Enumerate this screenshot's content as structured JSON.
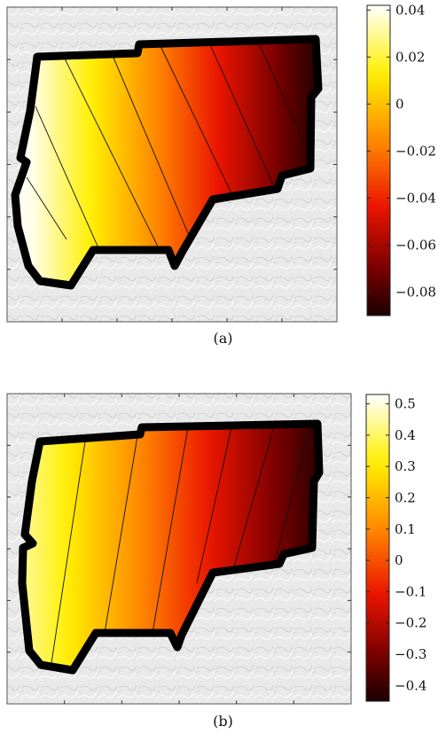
{
  "chart_data": [
    {
      "type": "heatmap",
      "caption": "(a)",
      "colorbar": {
        "min": -0.09,
        "max": 0.042,
        "ticks": [
          0.04,
          0.02,
          0,
          -0.02,
          -0.04,
          -0.06,
          -0.08
        ],
        "tick_labels": [
          "0.04",
          "0.02",
          "0",
          "−0.02",
          "−0.04",
          "−0.06",
          "−0.08"
        ]
      },
      "field": {
        "value_left": 0.04,
        "value_right": -0.088,
        "direction": "decreasing left to right"
      },
      "contour_count": 6,
      "colormap": [
        "#1a0000",
        "#8b0000",
        "#ff2200",
        "#ff8000",
        "#ffff00",
        "#ffffff"
      ]
    },
    {
      "type": "heatmap",
      "caption": "(b)",
      "colorbar": {
        "min": -0.45,
        "max": 0.53,
        "ticks": [
          0.5,
          0.4,
          0.3,
          0.2,
          0.1,
          0,
          -0.1,
          -0.2,
          -0.3,
          -0.4
        ],
        "tick_labels": [
          "0.5",
          "0.4",
          "0.3",
          "0.2",
          "0.1",
          "0",
          "−0.1",
          "−0.2",
          "−0.3",
          "−0.4"
        ]
      },
      "field": {
        "value_left": 0.42,
        "value_right": -0.42,
        "direction": "decreasing left to right"
      },
      "contour_count": 6,
      "colormap": [
        "#1a0000",
        "#8b0000",
        "#ff2200",
        "#ff8000",
        "#ffff00",
        "#ffffff"
      ]
    }
  ]
}
